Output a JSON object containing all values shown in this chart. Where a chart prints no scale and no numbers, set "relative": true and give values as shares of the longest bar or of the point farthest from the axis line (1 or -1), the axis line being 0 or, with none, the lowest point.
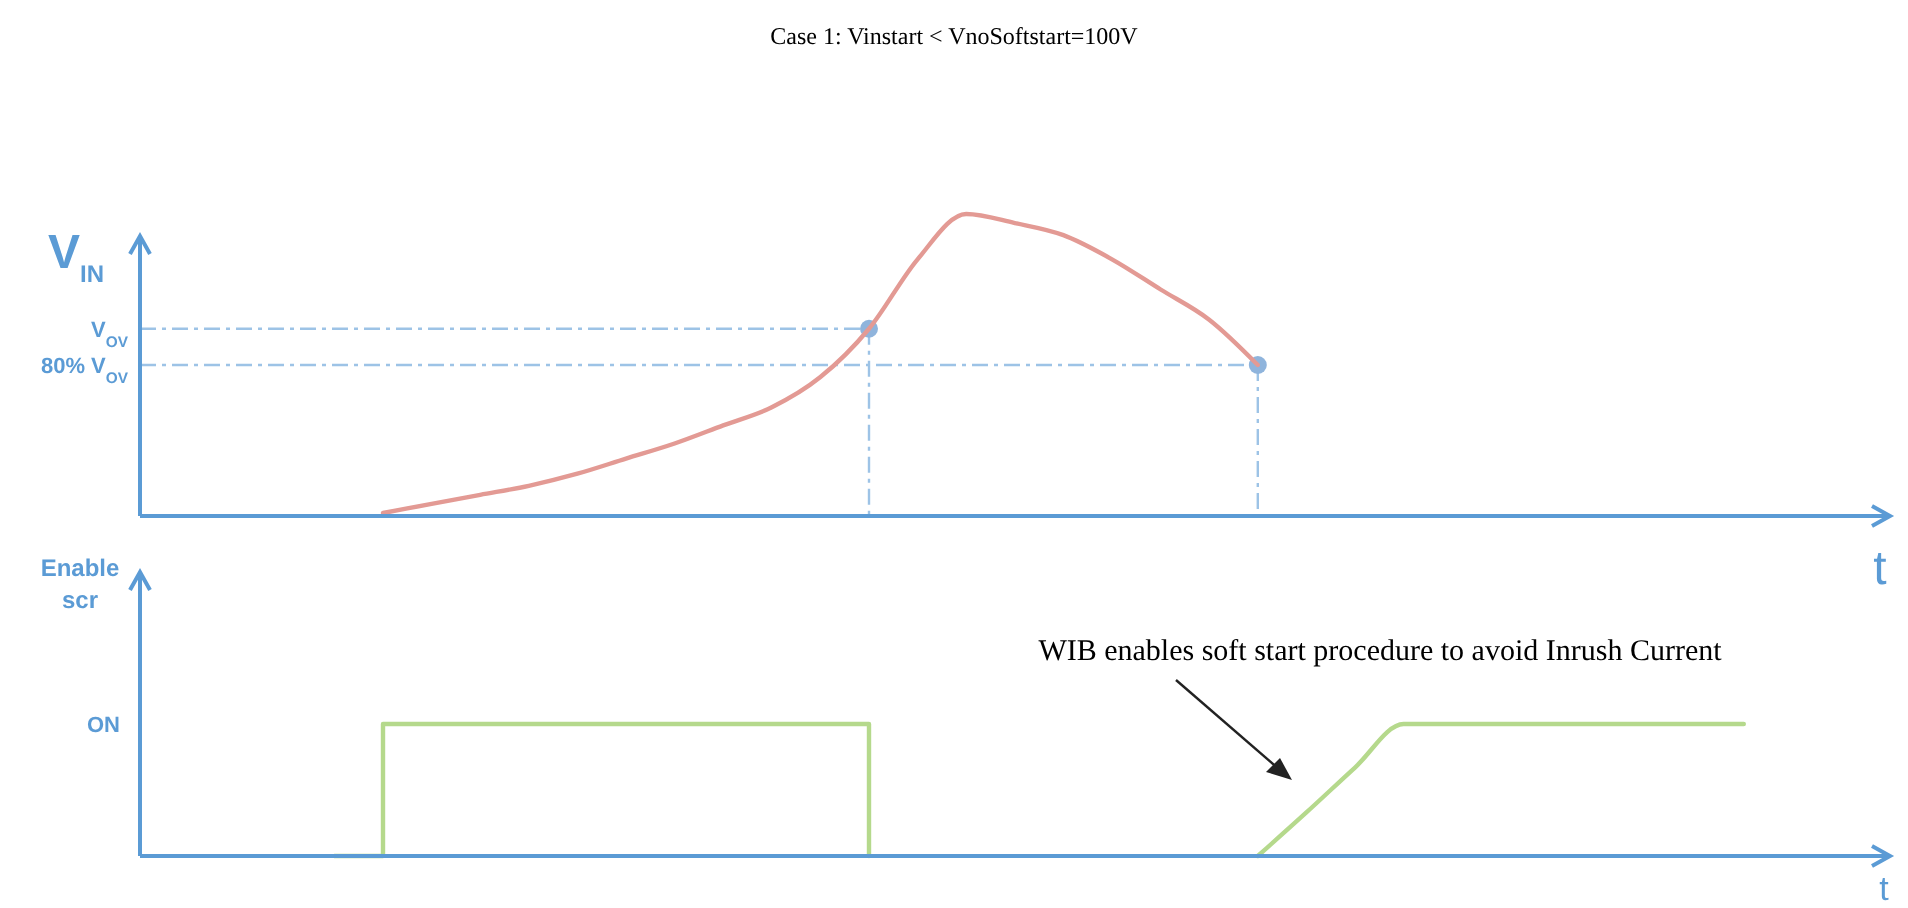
{
  "chart_data": [
    {
      "type": "line",
      "title": "Case 1: Vinstart < VnoSoftstart=100V",
      "ylabel": "V$_{IN}$",
      "xlabel": "t",
      "relative": true,
      "categories": [
        null,
        null,
        null,
        null,
        null,
        null,
        null,
        null,
        null,
        null,
        null,
        null,
        null,
        null,
        null,
        null,
        null,
        null,
        null,
        null,
        null,
        null,
        null,
        null,
        null,
        null,
        null,
        null,
        null,
        null,
        null,
        null,
        null,
        null,
        null,
        null
      ],
      "series": [
        {
          "color": "#e39a94",
          "values": [
            null,
            null,
            null,
            null,
            null,
            0.01,
            0.04,
            0.07,
            0.1,
            0.14,
            0.19,
            0.24,
            0.3,
            0.36,
            0.46,
            0.62,
            0.85,
            1,
            0.97,
            0.93,
            0.85,
            0.75,
            0.65,
            0.5,
            null,
            null,
            null,
            null,
            null,
            null,
            null,
            null,
            null,
            null,
            null,
            null
          ]
        }
      ],
      "ref_lines": [
        {
          "axis": "y",
          "value": 0.62,
          "color": "#9dc3e6",
          "line_style": "dashdot"
        },
        {
          "axis": "y",
          "value": 0.5,
          "color": "#9dc3e6",
          "line_style": "dashdot"
        }
      ],
      "annotations": [
        "V$_{OV}$",
        "80% V$_{OV}$"
      ]
    },
    {
      "type": "line",
      "ylabel": "Enable\nscr",
      "xlabel": "t",
      "relative": true,
      "categories": [
        null,
        null,
        null,
        null,
        null,
        null,
        null,
        null,
        null,
        null,
        null,
        null,
        null,
        null,
        null,
        null,
        null,
        null,
        null,
        null,
        null,
        null,
        null,
        null,
        null,
        null,
        null,
        null,
        null,
        null,
        null,
        null,
        null,
        null,
        null,
        null
      ],
      "series": [
        {
          "type": "step",
          "color": "#b5d98c",
          "values": [
            null,
            null,
            null,
            null,
            0,
            1,
            1,
            1,
            1,
            1,
            1,
            1,
            1,
            1,
            1,
            0,
            null,
            null,
            null,
            null,
            null,
            null,
            null,
            null,
            null,
            null,
            null,
            null,
            null,
            null,
            null,
            null,
            null,
            null,
            null,
            null
          ]
        },
        {
          "color": "#b5d98c",
          "values": [
            null,
            null,
            null,
            null,
            null,
            null,
            null,
            null,
            null,
            null,
            null,
            null,
            null,
            null,
            null,
            null,
            null,
            null,
            null,
            null,
            null,
            null,
            null,
            0,
            0.33,
            0.67,
            1,
            1,
            1,
            1,
            1,
            1,
            1,
            1,
            null,
            null
          ]
        }
      ],
      "annotations": [
        "ON",
        "WIB enables soft start procedure to avoid Inrush Current"
      ]
    }
  ]
}
